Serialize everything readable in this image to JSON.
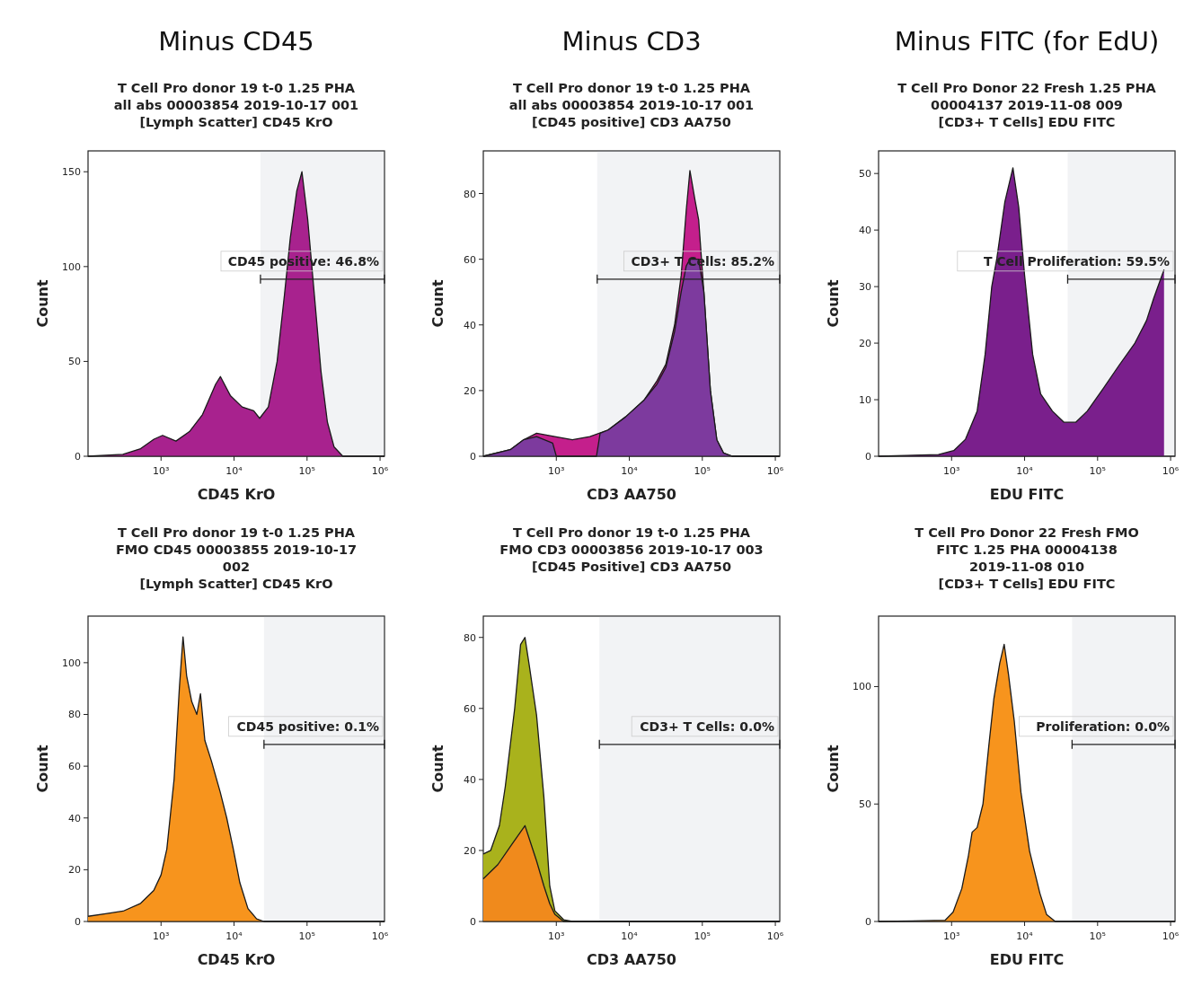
{
  "chart_data": [
    {
      "type": "area",
      "title": "Minus CD45",
      "subtitle": "T Cell Pro donor 19 t-0 1.25 PHA\nall abs 00003854 2019-10-17 001\n[Lymph Scatter] CD45 KrO",
      "xlabel": "CD45 KrO",
      "ylabel": "Count",
      "log": "x",
      "xlim": [
        100,
        1150000
      ],
      "xticks": [
        {
          "value": 1000,
          "label": "10³"
        },
        {
          "value": 10000,
          "label": "10⁴"
        },
        {
          "value": 100000,
          "label": "10⁵"
        },
        {
          "value": 1000000,
          "label": "10⁶"
        }
      ],
      "ylim": [
        0,
        161
      ],
      "yticks": [
        0,
        50,
        100,
        150
      ],
      "series": [
        {
          "color": "#a8228e",
          "x": [
            100,
            300,
            525,
            800,
            1050,
            1600,
            2450,
            3700,
            5600,
            6500,
            8900,
            12900,
            18600,
            22400,
            29500,
            38900,
            49000,
            58900,
            72400,
            85100,
            102000,
            126000,
            155000,
            190000,
            234000,
            309000,
            1150000
          ],
          "values": [
            0,
            1,
            4,
            9,
            11,
            8,
            13,
            22,
            38,
            42,
            32,
            26,
            24,
            20,
            26,
            50,
            85,
            115,
            140,
            150,
            125,
            85,
            45,
            18,
            5,
            0,
            0
          ]
        }
      ],
      "bands": [
        {
          "axis": "x",
          "from": 23000,
          "to": 1150000,
          "label": "CD45 positive: 46.8%"
        }
      ]
    },
    {
      "type": "area",
      "title": "Minus CD3",
      "subtitle": "T Cell Pro donor 19 t-0 1.25 PHA\nall abs 00003854 2019-10-17 001\n[CD45 positive] CD3 AA750",
      "xlabel": "CD3 AA750",
      "ylabel": "Count",
      "log": "x",
      "xlim": [
        100,
        1150000
      ],
      "xticks": [
        {
          "value": 1000,
          "label": "10³"
        },
        {
          "value": 10000,
          "label": "10⁴"
        },
        {
          "value": 100000,
          "label": "10⁵"
        },
        {
          "value": 1000000,
          "label": "10⁶"
        }
      ],
      "ylim": [
        0,
        93
      ],
      "yticks": [
        0,
        20,
        40,
        60,
        80
      ],
      "series": [
        {
          "color": "#c41f8c",
          "x": [
            100,
            234,
            355,
            537,
            955,
            1660,
            2880,
            5130,
            8910,
            15800,
            24000,
            31600,
            41700,
            51300,
            60300,
            67600,
            79400,
            89100,
            105000,
            129000,
            158000,
            195000,
            257000,
            1150000
          ],
          "values": [
            0,
            2,
            5,
            7,
            6,
            5,
            6,
            8,
            12,
            17,
            23,
            28,
            40,
            55,
            75,
            87,
            78,
            72,
            50,
            20,
            5,
            1,
            0,
            0
          ]
        },
        {
          "color": "#7d3a9e",
          "x": [
            100,
            234,
            355,
            537,
            891,
            1000,
            3550,
            3980,
            5130,
            8910,
            15800,
            24000,
            31600,
            41700,
            51300,
            60300,
            67600,
            79400,
            89100,
            105000,
            129000,
            158000,
            195000,
            257000,
            1150000
          ],
          "values": [
            0,
            2,
            5,
            6,
            4,
            0,
            0,
            7,
            8,
            12,
            17,
            22,
            27,
            38,
            50,
            58,
            60,
            60,
            60,
            50,
            20,
            5,
            1,
            0,
            0
          ]
        }
      ],
      "bands": [
        {
          "axis": "x",
          "from": 3630,
          "to": 1150000,
          "label": "CD3+ T Cells: 85.2%"
        }
      ]
    },
    {
      "type": "area",
      "title": "Minus FITC (for EdU)",
      "subtitle": "T Cell Pro Donor 22 Fresh 1.25 PHA\n00004137 2019-11-08 009\n[CD3+ T Cells] EDU FITC",
      "xlabel": "EDU FITC",
      "ylabel": "Count",
      "log": "x",
      "xlim": [
        100,
        1150000
      ],
      "xticks": [
        {
          "value": 1000,
          "label": "10³"
        },
        {
          "value": 10000,
          "label": "10⁴"
        },
        {
          "value": 100000,
          "label": "10⁵"
        },
        {
          "value": 1000000,
          "label": "10⁶"
        }
      ],
      "ylim": [
        0,
        54
      ],
      "yticks": [
        0,
        10,
        20,
        30,
        40,
        50
      ],
      "series": [
        {
          "color": "#7a1f8c",
          "x": [
            100,
            661,
            1070,
            1550,
            2240,
            2880,
            3550,
            4170,
            5370,
            6920,
            8320,
            10000,
            12900,
            16600,
            24000,
            34700,
            50100,
            72400,
            120000,
            195000,
            324000,
            468000,
            589000,
            813000
          ],
          "values": [
            0,
            0.3,
            1,
            3,
            8,
            18,
            30,
            35,
            45,
            51,
            44,
            32,
            18,
            11,
            8,
            6,
            6,
            8,
            12,
            16,
            20,
            24,
            28,
            33
          ]
        }
      ],
      "bands": [
        {
          "axis": "x",
          "from": 38900,
          "to": 1150000,
          "label": "T Cell Proliferation: 59.5%"
        }
      ]
    },
    {
      "type": "area",
      "title": "T Cell Pro donor 19 t-0 1.25 PHA\nFMO CD45 00003855 2019-10-17\n002\n[Lymph Scatter] CD45 KrO",
      "xlabel": "CD45 KrO",
      "ylabel": "Count",
      "log": "x",
      "xlim": [
        100,
        1150000
      ],
      "xticks": [
        {
          "value": 1000,
          "label": "10³"
        },
        {
          "value": 10000,
          "label": "10⁴"
        },
        {
          "value": 100000,
          "label": "10⁵"
        },
        {
          "value": 1000000,
          "label": "10⁶"
        }
      ],
      "ylim": [
        0,
        118
      ],
      "yticks": [
        0,
        20,
        40,
        60,
        80,
        100
      ],
      "series": [
        {
          "color": "#f7941d",
          "x": [
            100,
            174,
            302,
            525,
            794,
            1000,
            1200,
            1510,
            1780,
            2000,
            2240,
            2630,
            3090,
            3470,
            3980,
            4900,
            6460,
            7940,
            9770,
            12000,
            15500,
            20400,
            25700,
            1150000
          ],
          "values": [
            2,
            3,
            4,
            7,
            12,
            18,
            28,
            55,
            90,
            110,
            95,
            85,
            80,
            88,
            70,
            62,
            50,
            40,
            28,
            15,
            5,
            1,
            0,
            0
          ]
        }
      ],
      "bands": [
        {
          "axis": "x",
          "from": 25700,
          "to": 1150000,
          "label": "CD45 positive: 0.1%"
        }
      ]
    },
    {
      "type": "area",
      "title": "T Cell Pro donor 19 t-0 1.25 PHA\nFMO CD3 00003856 2019-10-17 003\n[CD45 Positive] CD3 AA750",
      "xlabel": "CD3 AA750",
      "ylabel": "Count",
      "log": "x",
      "xlim": [
        100,
        1150000
      ],
      "xticks": [
        {
          "value": 1000,
          "label": "10³"
        },
        {
          "value": 10000,
          "label": "10⁴"
        },
        {
          "value": 100000,
          "label": "10⁵"
        },
        {
          "value": 1000000,
          "label": "10⁶"
        }
      ],
      "ylim": [
        0,
        86
      ],
      "yticks": [
        0,
        20,
        40,
        60,
        80
      ],
      "series": [
        {
          "color": "#a9b21c",
          "x": [
            100,
            126,
            166,
            200,
            269,
            324,
            372,
            427,
            537,
            676,
            813,
            955,
            1260,
            1660,
            1150000
          ],
          "values": [
            19,
            20,
            27,
            38,
            60,
            78,
            80,
            72,
            58,
            35,
            10,
            3,
            0.5,
            0,
            0
          ]
        },
        {
          "color": "#f08a1c",
          "x": [
            100,
            158,
            251,
            372,
            537,
            676,
            813,
            955,
            1260,
            1150000
          ],
          "values": [
            12,
            16,
            22,
            27,
            17,
            10,
            5,
            2,
            0,
            0
          ]
        }
      ],
      "bands": [
        {
          "axis": "x",
          "from": 3890,
          "to": 1150000,
          "label": "CD3+ T Cells: 0.0%"
        }
      ]
    },
    {
      "type": "area",
      "title": "T Cell Pro Donor 22 Fresh FMO\nFITC 1.25 PHA 00004138\n2019-11-08 010\n[CD3+ T Cells] EDU FITC",
      "xlabel": "EDU FITC",
      "ylabel": "Count",
      "log": "x",
      "xlim": [
        100,
        1150000
      ],
      "xticks": [
        {
          "value": 1000,
          "label": "10³"
        },
        {
          "value": 10000,
          "label": "10⁴"
        },
        {
          "value": 100000,
          "label": "10⁵"
        },
        {
          "value": 1000000,
          "label": "10⁶"
        }
      ],
      "ylim": [
        0,
        130
      ],
      "yticks": [
        0,
        50,
        100
      ],
      "series": [
        {
          "color": "#f7941d",
          "x": [
            100,
            813,
            1050,
            1380,
            1700,
            1910,
            2240,
            2690,
            3240,
            3800,
            4570,
            5250,
            6030,
            7240,
            8910,
            11700,
            16200,
            20000,
            26300,
            1150000
          ],
          "values": [
            0,
            0.5,
            4,
            14,
            28,
            38,
            40,
            50,
            75,
            95,
            110,
            118,
            105,
            85,
            55,
            30,
            12,
            3,
            0,
            0
          ]
        }
      ],
      "bands": [
        {
          "axis": "x",
          "from": 44700,
          "to": 1150000,
          "label": "Proliferation: 0.0%"
        }
      ]
    }
  ]
}
